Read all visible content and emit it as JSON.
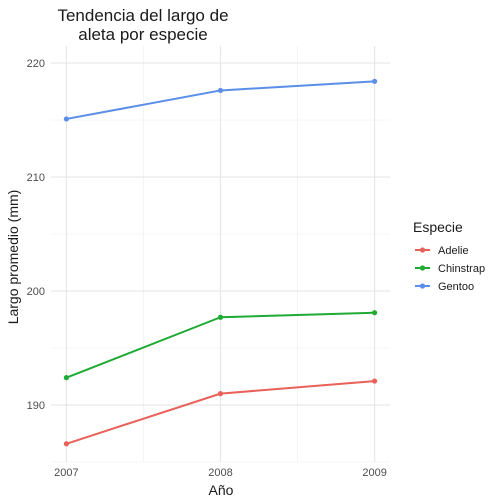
{
  "chart_data": {
    "type": "line",
    "title_lines": [
      "Tendencia del largo de",
      "aleta por especie"
    ],
    "xlabel": "Año",
    "ylabel": "Largo promedio (mm)",
    "x": [
      2007,
      2008,
      2009
    ],
    "x_tick_labels": [
      "2007",
      "2008",
      "2009"
    ],
    "y_ticks": [
      190,
      200,
      210,
      220
    ],
    "y_tick_labels": [
      "190",
      "200",
      "210",
      "220"
    ],
    "ylim": [
      185,
      221.5
    ],
    "grid": true,
    "legend": {
      "title": "Especie",
      "placement": "right"
    },
    "series": [
      {
        "name": "Adelie",
        "color": "#e8625a",
        "values": [
          186.6,
          191.0,
          192.1
        ]
      },
      {
        "name": "Chinstrap",
        "color": "#1faa34",
        "values": [
          192.4,
          197.7,
          198.1
        ]
      },
      {
        "name": "Gentoo",
        "color": "#5a8ee8",
        "values": [
          215.1,
          217.6,
          218.4
        ]
      }
    ]
  }
}
